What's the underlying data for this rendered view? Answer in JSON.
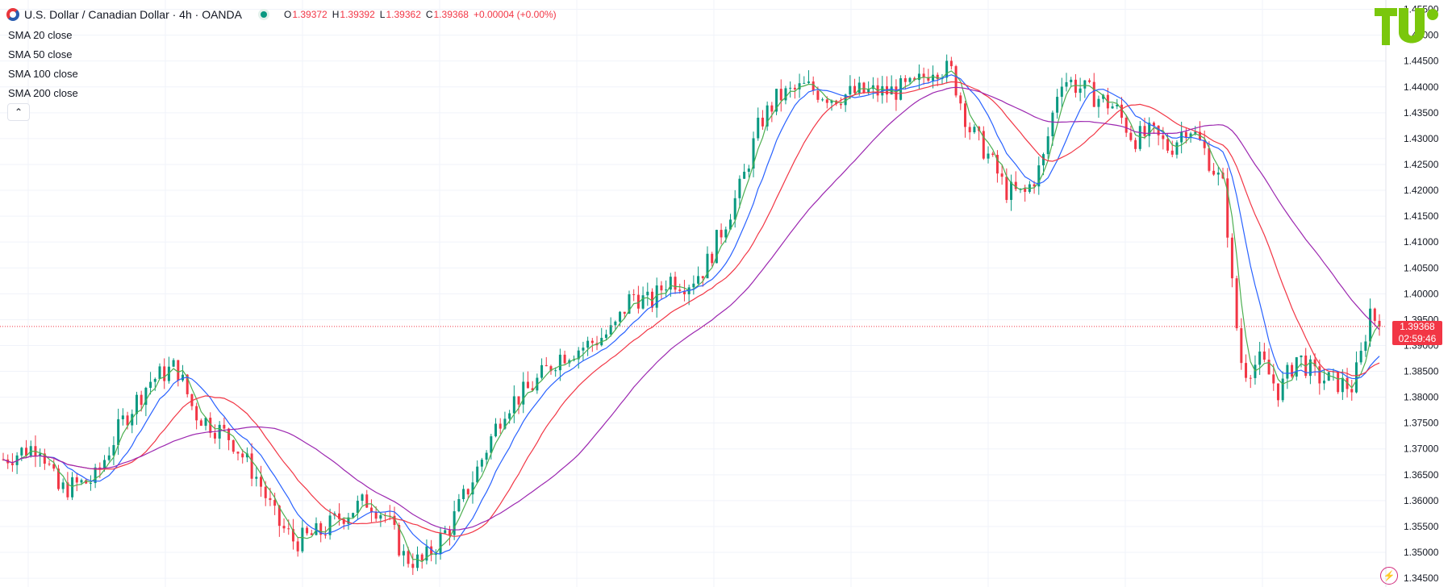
{
  "header": {
    "title": "U.S. Dollar / Canadian Dollar · 4h · OANDA",
    "open_label": "O",
    "open": "1.39372",
    "high_label": "H",
    "high": "1.39392",
    "low_label": "L",
    "low": "1.39362",
    "close_label": "C",
    "close": "1.39368",
    "change": "+0.00004 (+0.00%)"
  },
  "studies": [
    {
      "label": "SMA 20 close",
      "color": "#4caf50"
    },
    {
      "label": "SMA 50 close",
      "color": "#2962ff"
    },
    {
      "label": "SMA 100 close",
      "color": "#f23645"
    },
    {
      "label": "SMA 200 close",
      "color": "#9c27b0"
    }
  ],
  "price_label": {
    "price": "1.39368",
    "countdown": "02:59:46"
  },
  "colors": {
    "up": "#089981",
    "down": "#f23645",
    "grid": "#f0f3fa",
    "axis_text": "#131722"
  },
  "icons": {
    "collapse": "chevron-up-icon",
    "logo": "tradingview-logo",
    "bolt": "lightning-icon"
  },
  "chart_data": {
    "type": "candlestick",
    "symbol": "USDCAD",
    "timeframe": "4h",
    "y_ticks": [
      "1.45500",
      "1.45000",
      "1.44500",
      "1.44000",
      "1.43500",
      "1.43000",
      "1.42500",
      "1.42000",
      "1.41500",
      "1.41000",
      "1.40500",
      "1.40000",
      "1.39500",
      "1.39000",
      "1.38500",
      "1.38000",
      "1.37500",
      "1.37000",
      "1.36500",
      "1.36000",
      "1.35500",
      "1.35000",
      "1.34500"
    ],
    "ylim": [
      1.3433,
      1.4568
    ],
    "last_price": 1.39368,
    "price_path_anchors": [
      [
        0,
        1.368
      ],
      [
        40,
        1.371
      ],
      [
        60,
        1.362
      ],
      [
        100,
        1.364
      ],
      [
        130,
        1.375
      ],
      [
        160,
        1.383
      ],
      [
        190,
        1.386
      ],
      [
        210,
        1.377
      ],
      [
        250,
        1.372
      ],
      [
        280,
        1.364
      ],
      [
        300,
        1.356
      ],
      [
        320,
        1.352
      ],
      [
        350,
        1.354
      ],
      [
        370,
        1.357
      ],
      [
        400,
        1.36
      ],
      [
        420,
        1.357
      ],
      [
        440,
        1.349
      ],
      [
        460,
        1.348
      ],
      [
        490,
        1.355
      ],
      [
        520,
        1.366
      ],
      [
        550,
        1.378
      ],
      [
        580,
        1.382
      ],
      [
        610,
        1.388
      ],
      [
        640,
        1.39
      ],
      [
        670,
        1.393
      ],
      [
        690,
        1.4
      ],
      [
        710,
        1.398
      ],
      [
        730,
        1.403
      ],
      [
        750,
        1.402
      ],
      [
        770,
        1.405
      ],
      [
        790,
        1.413
      ],
      [
        810,
        1.421
      ],
      [
        830,
        1.433
      ],
      [
        850,
        1.438
      ],
      [
        880,
        1.44
      ],
      [
        910,
        1.438
      ],
      [
        940,
        1.439
      ],
      [
        970,
        1.439
      ],
      [
        1000,
        1.44
      ],
      [
        1020,
        1.444
      ],
      [
        1040,
        1.443
      ],
      [
        1060,
        1.432
      ],
      [
        1080,
        1.427
      ],
      [
        1100,
        1.42
      ],
      [
        1120,
        1.419
      ],
      [
        1140,
        1.425
      ],
      [
        1160,
        1.442
      ],
      [
        1180,
        1.44
      ],
      [
        1200,
        1.438
      ],
      [
        1220,
        1.436
      ],
      [
        1240,
        1.43
      ],
      [
        1260,
        1.431
      ],
      [
        1280,
        1.428
      ],
      [
        1300,
        1.433
      ],
      [
        1320,
        1.427
      ],
      [
        1340,
        1.42
      ],
      [
        1350,
        1.398
      ],
      [
        1360,
        1.385
      ],
      [
        1380,
        1.387
      ],
      [
        1400,
        1.381
      ],
      [
        1420,
        1.388
      ],
      [
        1440,
        1.384
      ],
      [
        1460,
        1.383
      ],
      [
        1480,
        1.382
      ],
      [
        1490,
        1.388
      ],
      [
        1500,
        1.397
      ],
      [
        1510,
        1.3937
      ]
    ]
  }
}
